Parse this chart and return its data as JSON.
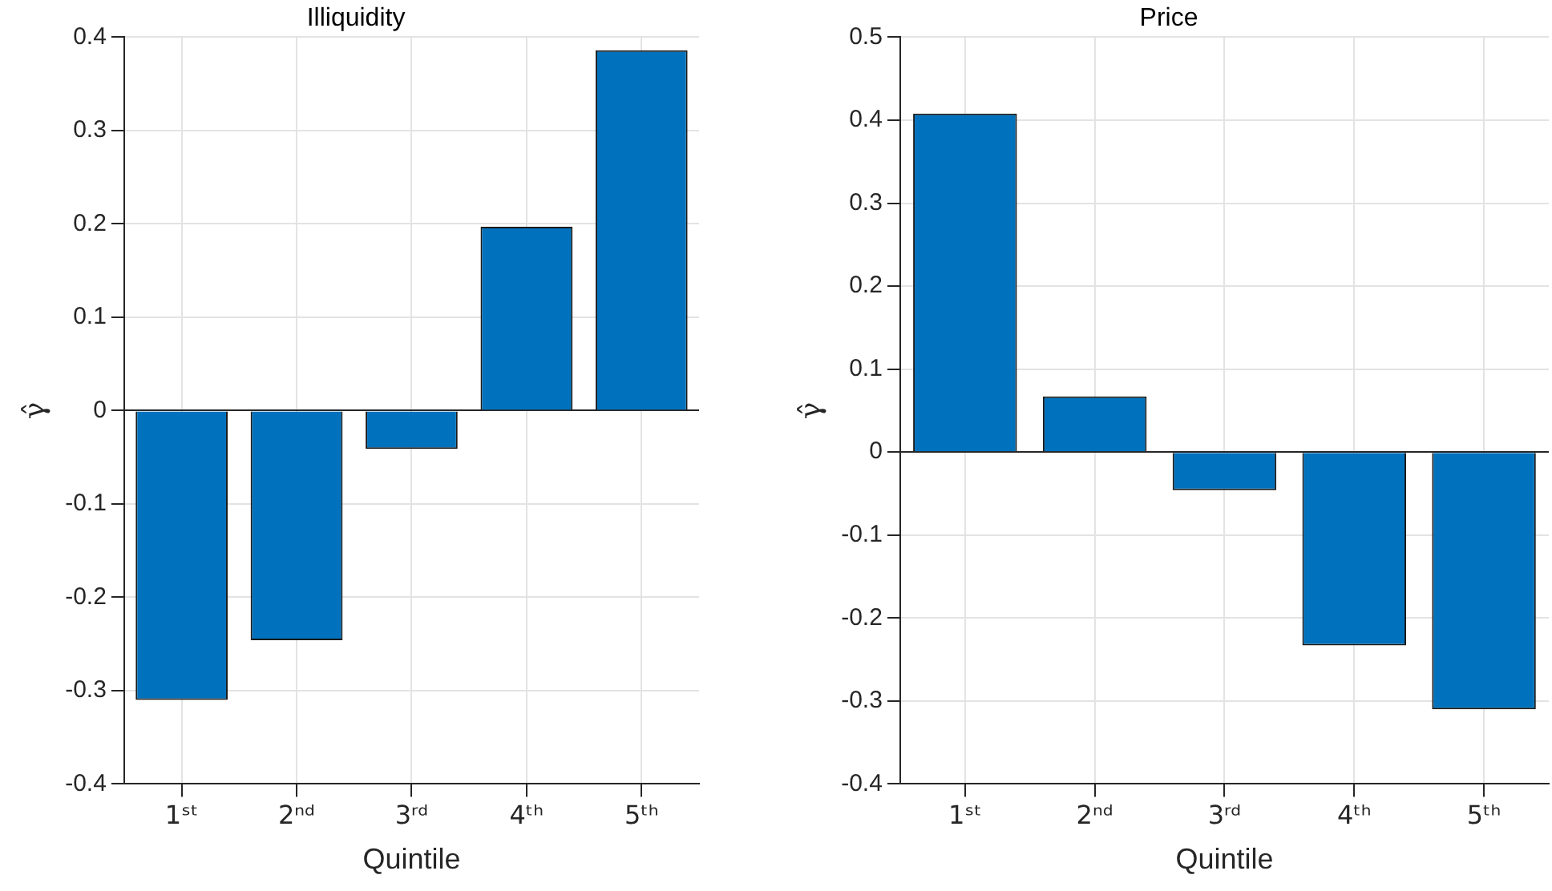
{
  "chart_data": [
    {
      "type": "bar",
      "title": "Illiquidity",
      "xlabel": "Quintile",
      "ylabel": "γ̂",
      "categories": [
        "1ˢᵗ",
        "2ⁿᵈ",
        "3ʳᵈ",
        "4ᵗʰ",
        "5ᵗʰ"
      ],
      "values": [
        -0.31,
        -0.246,
        -0.041,
        0.197,
        0.386
      ],
      "color": "#0072bd",
      "ylim": [
        -0.4,
        0.4
      ],
      "yticks": [
        -0.4,
        -0.3,
        -0.2,
        -0.1,
        0,
        0.1,
        0.2,
        0.3,
        0.4
      ],
      "grid": true,
      "legend": false
    },
    {
      "type": "bar",
      "title": "Price",
      "xlabel": "Quintile",
      "ylabel": "γ̂",
      "categories": [
        "1ˢᵗ",
        "2ⁿᵈ",
        "3ʳᵈ",
        "4ᵗʰ",
        "5ᵗʰ"
      ],
      "values": [
        0.408,
        0.067,
        -0.046,
        -0.233,
        -0.31
      ],
      "color": "#0072bd",
      "ylim": [
        -0.4,
        0.5
      ],
      "yticks": [
        -0.4,
        -0.3,
        -0.2,
        -0.1,
        0,
        0.1,
        0.2,
        0.3,
        0.4,
        0.5
      ],
      "grid": true,
      "legend": false
    }
  ]
}
